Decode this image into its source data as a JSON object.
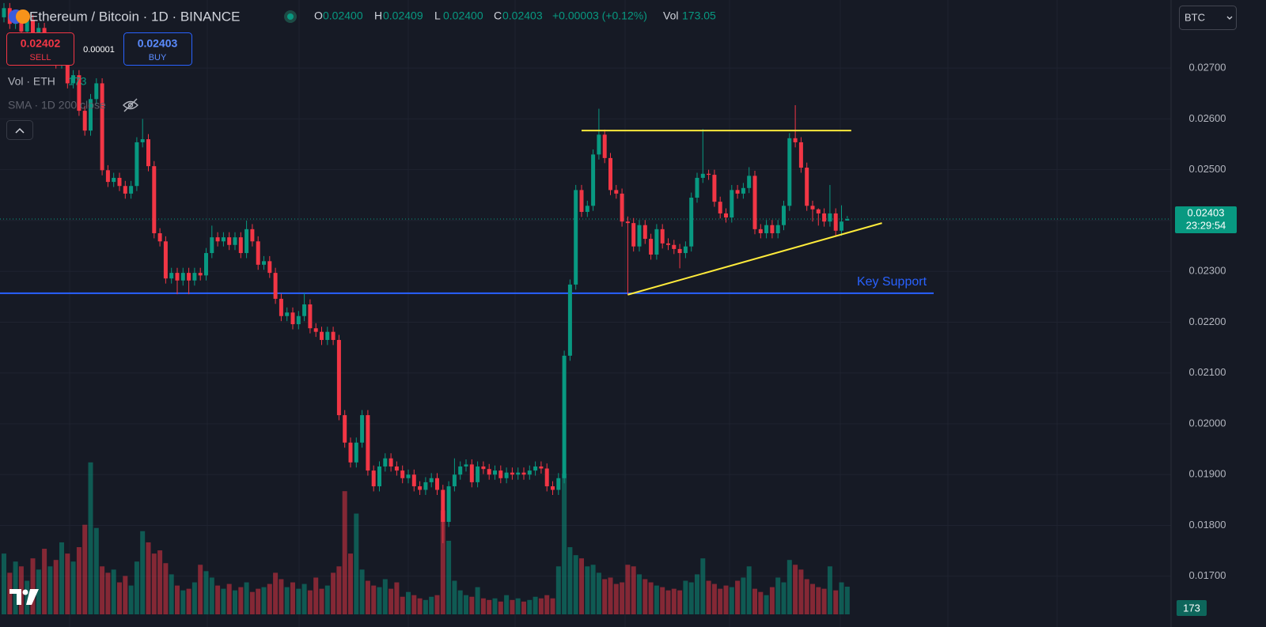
{
  "header": {
    "symbol": "Ethereum / Bitcoin · 1D · BINANCE",
    "ohlc": [
      {
        "key": "O",
        "value": "0.02400"
      },
      {
        "key": "H",
        "value": "0.02409"
      },
      {
        "key": "L",
        "value": "0.02400"
      },
      {
        "key": "C",
        "value": "0.02403"
      }
    ],
    "change": "+0.00003 (+0.12%)",
    "volume_key": "Vol",
    "volume": "173.05",
    "sell": {
      "price": "0.02402",
      "label": "SELL"
    },
    "spread": "0.00001",
    "buy": {
      "price": "0.02403",
      "label": "BUY"
    },
    "indicators": [
      {
        "name": "Vol · ETH",
        "value": "173"
      },
      {
        "name": "SMA · 1D 200 close"
      }
    ],
    "currency": "BTC"
  },
  "chart_data": {
    "type": "candlestick",
    "up_color": "#089981",
    "down_color": "#f23645",
    "grid": true,
    "ylim": [
      0.01625,
      0.02834
    ],
    "yticks": [
      {
        "value": 0.017,
        "label": "0.01700"
      },
      {
        "value": 0.018,
        "label": "0.01800"
      },
      {
        "value": 0.019,
        "label": "0.01900"
      },
      {
        "value": 0.02,
        "label": "0.02000"
      },
      {
        "value": 0.021,
        "label": "0.02100"
      },
      {
        "value": 0.022,
        "label": "0.02200"
      },
      {
        "value": 0.023,
        "label": "0.02300"
      },
      {
        "value": 0.024,
        "label": "0.02400"
      },
      {
        "value": 0.025,
        "label": "0.02500"
      },
      {
        "value": 0.026,
        "label": "0.02600"
      },
      {
        "value": 0.027,
        "label": "0.02700"
      }
    ],
    "vol_ylim": [
      0,
      3840
    ],
    "candles": {
      "open": [
        0.028,
        0.02818,
        0.02787,
        0.02803,
        0.02772,
        0.02795,
        0.02764,
        0.02779,
        0.0274,
        0.02756,
        0.02709,
        0.02725,
        0.0267,
        0.02686,
        0.02616,
        0.02577,
        0.02639,
        0.0267,
        0.02499,
        0.02476,
        0.02484,
        0.02468,
        0.02453,
        0.02468,
        0.02554,
        0.0256,
        0.02507,
        0.02375,
        0.02359,
        0.02286,
        0.02297,
        0.02282,
        0.02297,
        0.02282,
        0.02297,
        0.02292,
        0.02336,
        0.02367,
        0.02359,
        0.02367,
        0.02352,
        0.02367,
        0.02336,
        0.02383,
        0.02359,
        0.02313,
        0.0232,
        0.02297,
        0.02246,
        0.02212,
        0.02219,
        0.02196,
        0.02212,
        0.02235,
        0.02188,
        0.02181,
        0.02165,
        0.02181,
        0.02165,
        0.02017,
        0.01963,
        0.01924,
        0.01963,
        0.02017,
        0.01908,
        0.01877,
        0.01916,
        0.01932,
        0.01916,
        0.01908,
        0.01893,
        0.019,
        0.01877,
        0.0187,
        0.01885,
        0.01893,
        0.0187,
        0.01807,
        0.01877,
        0.019,
        0.01916,
        0.0192,
        0.01885,
        0.01916,
        0.01911,
        0.019,
        0.01908,
        0.01893,
        0.01904,
        0.019,
        0.01904,
        0.019,
        0.01908,
        0.01916,
        0.01912,
        0.01877,
        0.0187,
        0.01893,
        0.02134,
        0.02274,
        0.0246,
        0.02417,
        0.02429,
        0.0253,
        0.02569,
        0.02523,
        0.0246,
        0.02453,
        0.02398,
        0.02395,
        0.02349,
        0.02391,
        0.02364,
        0.02333,
        0.02383,
        0.02355,
        0.02352,
        0.02344,
        0.02336,
        0.02349,
        0.02445,
        0.02484,
        0.02492,
        0.0249,
        0.02437,
        0.02414,
        0.02406,
        0.0246,
        0.02453,
        0.02464,
        0.02488,
        0.02383,
        0.02375,
        0.02391,
        0.02375,
        0.02391,
        0.02429,
        0.02562,
        0.02554,
        0.02504,
        0.02429,
        0.02422,
        0.02414,
        0.02398,
        0.02414,
        0.0238,
        0.024
      ],
      "high": [
        0.02828,
        0.02828,
        0.02813,
        0.02813,
        0.02805,
        0.02805,
        0.02789,
        0.02789,
        0.02766,
        0.02766,
        0.02735,
        0.02735,
        0.02696,
        0.02696,
        0.02626,
        0.02649,
        0.0268,
        0.0268,
        0.02509,
        0.02494,
        0.02494,
        0.02478,
        0.02478,
        0.02564,
        0.026,
        0.0257,
        0.02517,
        0.02385,
        0.02369,
        0.02307,
        0.02307,
        0.02307,
        0.02307,
        0.02307,
        0.02307,
        0.02346,
        0.0239,
        0.02377,
        0.02377,
        0.02377,
        0.02377,
        0.02377,
        0.024,
        0.02393,
        0.02369,
        0.0233,
        0.0233,
        0.02307,
        0.02256,
        0.02229,
        0.02229,
        0.02222,
        0.02257,
        0.02245,
        0.02198,
        0.02191,
        0.02191,
        0.02191,
        0.02175,
        0.02027,
        0.01973,
        0.01973,
        0.02027,
        0.02027,
        0.01918,
        0.01926,
        0.01942,
        0.01942,
        0.01926,
        0.01918,
        0.0191,
        0.0191,
        0.01887,
        0.01895,
        0.01903,
        0.01903,
        0.0188,
        0.01887,
        0.01932,
        0.01926,
        0.0193,
        0.0193,
        0.01926,
        0.01926,
        0.01921,
        0.01918,
        0.01918,
        0.01914,
        0.01914,
        0.01914,
        0.01914,
        0.01918,
        0.01926,
        0.01926,
        0.01922,
        0.01887,
        0.01903,
        0.02144,
        0.02284,
        0.0247,
        0.0247,
        0.02439,
        0.0254,
        0.0262,
        0.02579,
        0.02533,
        0.0247,
        0.02463,
        0.02408,
        0.02405,
        0.02401,
        0.02401,
        0.02374,
        0.02393,
        0.02393,
        0.02365,
        0.02362,
        0.02354,
        0.02359,
        0.02455,
        0.02494,
        0.0258,
        0.025,
        0.025,
        0.02447,
        0.02424,
        0.0247,
        0.0247,
        0.02474,
        0.02505,
        0.02498,
        0.02393,
        0.02401,
        0.02401,
        0.02401,
        0.02439,
        0.02572,
        0.02627,
        0.02564,
        0.02514,
        0.02439,
        0.02424,
        0.02424,
        0.0247,
        0.02424,
        0.0243,
        0.02409
      ],
      "low": [
        0.0279,
        0.02777,
        0.02777,
        0.02762,
        0.02762,
        0.02754,
        0.02754,
        0.0273,
        0.0273,
        0.02699,
        0.02699,
        0.0266,
        0.0266,
        0.02606,
        0.02567,
        0.02567,
        0.02629,
        0.02489,
        0.02466,
        0.02466,
        0.02458,
        0.02443,
        0.02443,
        0.02458,
        0.02544,
        0.02497,
        0.02365,
        0.02349,
        0.02276,
        0.02276,
        0.02255,
        0.02272,
        0.02255,
        0.02272,
        0.02282,
        0.02282,
        0.02326,
        0.02349,
        0.02349,
        0.02342,
        0.02342,
        0.02326,
        0.02326,
        0.02349,
        0.02303,
        0.02303,
        0.02287,
        0.02236,
        0.02202,
        0.02202,
        0.02186,
        0.02186,
        0.02202,
        0.02178,
        0.02171,
        0.02155,
        0.02155,
        0.02155,
        0.02007,
        0.01953,
        0.01914,
        0.01914,
        0.01953,
        0.01898,
        0.01867,
        0.01867,
        0.01906,
        0.01906,
        0.01898,
        0.01883,
        0.01883,
        0.01867,
        0.0186,
        0.0186,
        0.01875,
        0.0186,
        0.01765,
        0.01797,
        0.01867,
        0.0189,
        0.01906,
        0.01875,
        0.01875,
        0.01901,
        0.0189,
        0.0189,
        0.01883,
        0.01883,
        0.0189,
        0.0189,
        0.0189,
        0.0189,
        0.01898,
        0.01902,
        0.01867,
        0.0186,
        0.0186,
        0.01883,
        0.02124,
        0.02264,
        0.02407,
        0.02407,
        0.02419,
        0.0252,
        0.02513,
        0.0245,
        0.02443,
        0.02388,
        0.02254,
        0.02339,
        0.02339,
        0.02354,
        0.02323,
        0.02323,
        0.02345,
        0.02342,
        0.02334,
        0.02306,
        0.02326,
        0.02339,
        0.02435,
        0.02474,
        0.0248,
        0.02427,
        0.02404,
        0.02396,
        0.02396,
        0.02443,
        0.02443,
        0.02454,
        0.02373,
        0.02365,
        0.02365,
        0.02365,
        0.02365,
        0.02381,
        0.02419,
        0.02544,
        0.02494,
        0.02419,
        0.02398,
        0.0239,
        0.02388,
        0.02388,
        0.0237,
        0.0237,
        0.024
      ],
      "close": [
        0.02818,
        0.02787,
        0.02803,
        0.02772,
        0.02795,
        0.02764,
        0.02779,
        0.0274,
        0.02756,
        0.02709,
        0.02725,
        0.0267,
        0.02686,
        0.02616,
        0.02577,
        0.02639,
        0.0267,
        0.02499,
        0.02476,
        0.02484,
        0.02468,
        0.02453,
        0.02468,
        0.02554,
        0.0256,
        0.02507,
        0.02375,
        0.02359,
        0.02286,
        0.02297,
        0.02282,
        0.02297,
        0.02282,
        0.02297,
        0.02292,
        0.02336,
        0.02367,
        0.02359,
        0.02367,
        0.02352,
        0.02367,
        0.02336,
        0.02383,
        0.02359,
        0.02313,
        0.0232,
        0.02297,
        0.02246,
        0.02212,
        0.02219,
        0.02196,
        0.02212,
        0.02235,
        0.02188,
        0.02181,
        0.02165,
        0.02181,
        0.02165,
        0.02017,
        0.01963,
        0.01924,
        0.01963,
        0.02017,
        0.01908,
        0.01877,
        0.01916,
        0.01932,
        0.01916,
        0.01908,
        0.01893,
        0.019,
        0.01877,
        0.0187,
        0.01885,
        0.01893,
        0.0187,
        0.01807,
        0.01877,
        0.019,
        0.01916,
        0.0192,
        0.01885,
        0.01916,
        0.01911,
        0.019,
        0.01908,
        0.01893,
        0.01904,
        0.019,
        0.01904,
        0.019,
        0.01908,
        0.01916,
        0.01912,
        0.01877,
        0.0187,
        0.01893,
        0.02134,
        0.02274,
        0.0246,
        0.02417,
        0.02429,
        0.0253,
        0.02569,
        0.02523,
        0.0246,
        0.02453,
        0.02398,
        0.02395,
        0.02349,
        0.02391,
        0.02364,
        0.02333,
        0.02383,
        0.02355,
        0.02352,
        0.02344,
        0.02336,
        0.02349,
        0.02445,
        0.02484,
        0.02492,
        0.0249,
        0.02437,
        0.02414,
        0.02406,
        0.0246,
        0.02453,
        0.02464,
        0.02488,
        0.02383,
        0.02375,
        0.02391,
        0.02375,
        0.02391,
        0.02429,
        0.02562,
        0.02554,
        0.02504,
        0.02429,
        0.02422,
        0.02414,
        0.02398,
        0.02414,
        0.0238,
        0.02398,
        0.02403
      ]
    },
    "volume": [
      380,
      260,
      330,
      300,
      210,
      350,
      280,
      410,
      300,
      340,
      450,
      380,
      330,
      420,
      560,
      950,
      540,
      300,
      260,
      280,
      200,
      240,
      180,
      330,
      520,
      450,
      380,
      400,
      320,
      250,
      180,
      150,
      160,
      200,
      310,
      270,
      230,
      180,
      160,
      190,
      150,
      170,
      200,
      140,
      160,
      170,
      190,
      260,
      220,
      170,
      200,
      160,
      190,
      150,
      230,
      160,
      180,
      260,
      300,
      770,
      380,
      630,
      280,
      210,
      180,
      170,
      220,
      160,
      200,
      110,
      140,
      120,
      100,
      90,
      110,
      120,
      650,
      460,
      210,
      150,
      120,
      110,
      170,
      100,
      90,
      100,
      80,
      120,
      90,
      100,
      80,
      90,
      110,
      100,
      120,
      100,
      300,
      880,
      420,
      370,
      350,
      300,
      310,
      260,
      220,
      230,
      190,
      200,
      310,
      300,
      250,
      220,
      200,
      180,
      170,
      150,
      160,
      150,
      210,
      200,
      250,
      350,
      210,
      190,
      160,
      180,
      170,
      210,
      230,
      300,
      160,
      140,
      120,
      170,
      230,
      200,
      340,
      310,
      280,
      220,
      190,
      170,
      160,
      300,
      150,
      200,
      173.05
    ],
    "last_price": {
      "value": 0.02403,
      "label": "0.02403",
      "countdown": "23:29:54"
    },
    "volume_badge": "173",
    "support": {
      "label": "Key Support",
      "value": 0.02257,
      "color": "#2962ff"
    },
    "resistance": {
      "value": 0.02577,
      "color": "#ffeb3b"
    },
    "trendline": {
      "values": [
        0.02254,
        0.02395
      ],
      "color": "#ffeb3b"
    }
  }
}
